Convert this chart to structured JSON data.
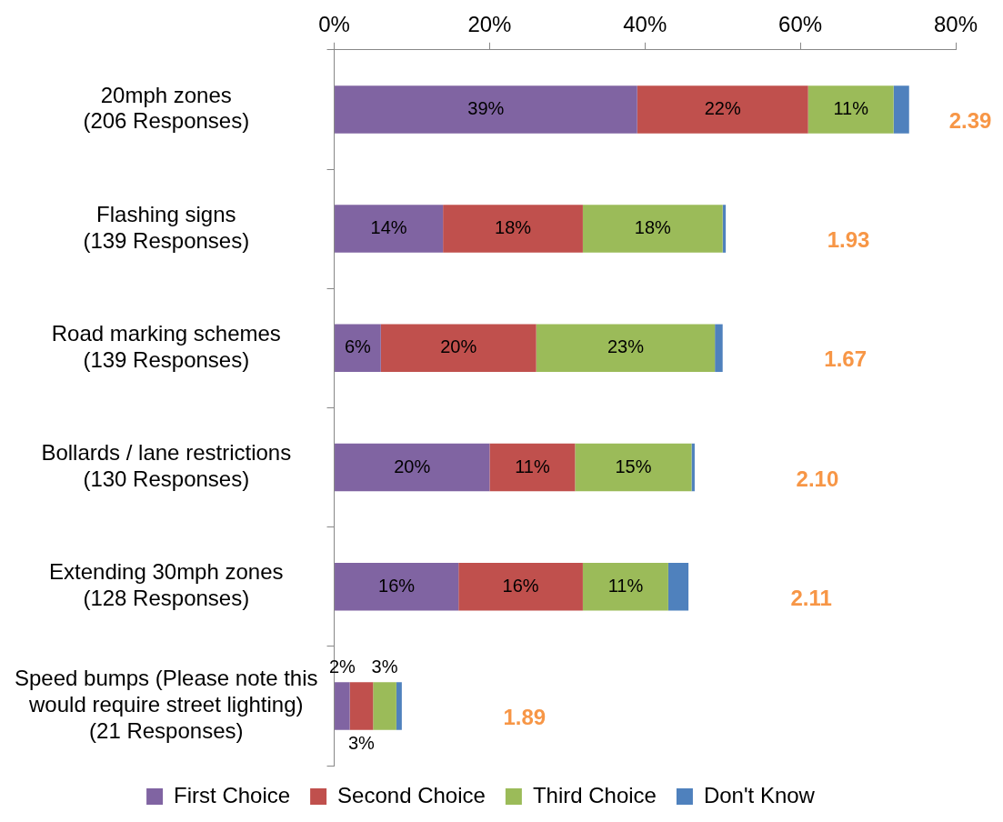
{
  "chart_data": {
    "type": "bar",
    "orientation": "horizontal",
    "stacked": true,
    "categories": [
      "20mph zones\n(206 Responses)",
      "Flashing signs\n(139 Responses)",
      "Road marking schemes\n(139 Responses)",
      "Bollards / lane restrictions\n(130 Responses)",
      "Extending 30mph zones\n(128 Responses)",
      "Speed bumps (Please note this\nwould require street lighting)\n(21 Responses)"
    ],
    "series": [
      {
        "name": "First Choice",
        "color": "#8064a2",
        "values": [
          39,
          14,
          6,
          20,
          16,
          2
        ],
        "value_labels": [
          "39%",
          "14%",
          "6%",
          "20%",
          "16%",
          "2%"
        ]
      },
      {
        "name": "Second Choice",
        "color": "#c0504d",
        "values": [
          22,
          18,
          20,
          11,
          16,
          3
        ],
        "value_labels": [
          "22%",
          "18%",
          "20%",
          "11%",
          "16%",
          "3%"
        ]
      },
      {
        "name": "Third Choice",
        "color": "#9bbb59",
        "values": [
          11,
          18,
          23,
          15,
          11,
          3
        ],
        "value_labels": [
          "11%",
          "18%",
          "23%",
          "15%",
          "11%",
          "3%"
        ]
      },
      {
        "name": "Don't Know",
        "color": "#4f81bd",
        "values": [
          2,
          0.4,
          1,
          0.4,
          2.6,
          0.7
        ]
      }
    ],
    "xlim": [
      0,
      80
    ],
    "xticks": [
      {
        "value": 0,
        "label": "0%"
      },
      {
        "value": 20,
        "label": "20%"
      },
      {
        "value": 40,
        "label": "40%"
      },
      {
        "value": 60,
        "label": "60%"
      },
      {
        "value": 80,
        "label": "80%"
      }
    ],
    "annotations": [
      "2.39",
      "1.93",
      "1.67",
      "2.10",
      "2.11",
      "1.89"
    ],
    "grid": false,
    "legend": "bottom"
  }
}
